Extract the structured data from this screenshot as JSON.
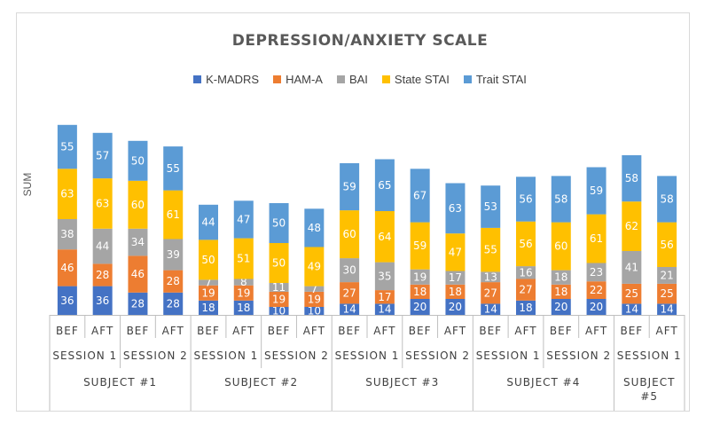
{
  "chart_data": {
    "type": "bar",
    "stacked": true,
    "title": "DEPRESSION/ANXIETY SCALE",
    "xlabel": "",
    "ylabel": "SUM",
    "legend_position": "top",
    "grid": false,
    "categories": [
      "BEF",
      "AFT",
      "BEF",
      "AFT",
      "BEF",
      "AFT",
      "BEF",
      "AFT",
      "BEF",
      "AFT",
      "BEF",
      "AFT",
      "BEF",
      "AFT",
      "BEF",
      "AFT",
      "BEF",
      "AFT"
    ],
    "sessions": [
      {
        "label": "SESSION 1",
        "span": 2
      },
      {
        "label": "SESSION 2",
        "span": 2
      },
      {
        "label": "SESSION 1",
        "span": 2
      },
      {
        "label": "SESSION 2",
        "span": 2
      },
      {
        "label": "SESSION 1",
        "span": 2
      },
      {
        "label": "SESSION 2",
        "span": 2
      },
      {
        "label": "SESSION 1",
        "span": 2
      },
      {
        "label": "SESSION 2",
        "span": 2
      },
      {
        "label": "SESSION 1",
        "span": 2
      }
    ],
    "subjects": [
      {
        "label": "SUBJECT #1",
        "span": 4
      },
      {
        "label": "SUBJECT #2",
        "span": 4
      },
      {
        "label": "SUBJECT #3",
        "span": 4
      },
      {
        "label": "SUBJECT #4",
        "span": 4
      },
      {
        "label": "SUBJECT #5",
        "span": 2
      }
    ],
    "series": [
      {
        "name": "K-MADRS",
        "color": "#4472c4",
        "values": [
          36,
          36,
          28,
          28,
          18,
          18,
          10,
          10,
          14,
          14,
          20,
          20,
          14,
          18,
          20,
          20,
          14,
          14
        ]
      },
      {
        "name": "HAM-A",
        "color": "#ed7d31",
        "values": [
          46,
          28,
          46,
          28,
          19,
          19,
          19,
          19,
          27,
          17,
          18,
          18,
          27,
          27,
          18,
          22,
          25,
          25
        ]
      },
      {
        "name": "BAI",
        "color": "#a5a5a5",
        "values": [
          38,
          44,
          34,
          39,
          7,
          8,
          11,
          7,
          30,
          35,
          19,
          17,
          13,
          16,
          18,
          23,
          41,
          21
        ]
      },
      {
        "name": "State STAI",
        "color": "#ffc000",
        "values": [
          63,
          63,
          60,
          61,
          50,
          51,
          50,
          49,
          60,
          64,
          59,
          47,
          55,
          56,
          60,
          61,
          62,
          56
        ]
      },
      {
        "name": "Trait STAI",
        "color": "#5b9bd5",
        "values": [
          55,
          57,
          50,
          55,
          44,
          47,
          50,
          48,
          59,
          65,
          67,
          63,
          53,
          56,
          58,
          59,
          58,
          58
        ]
      }
    ]
  }
}
